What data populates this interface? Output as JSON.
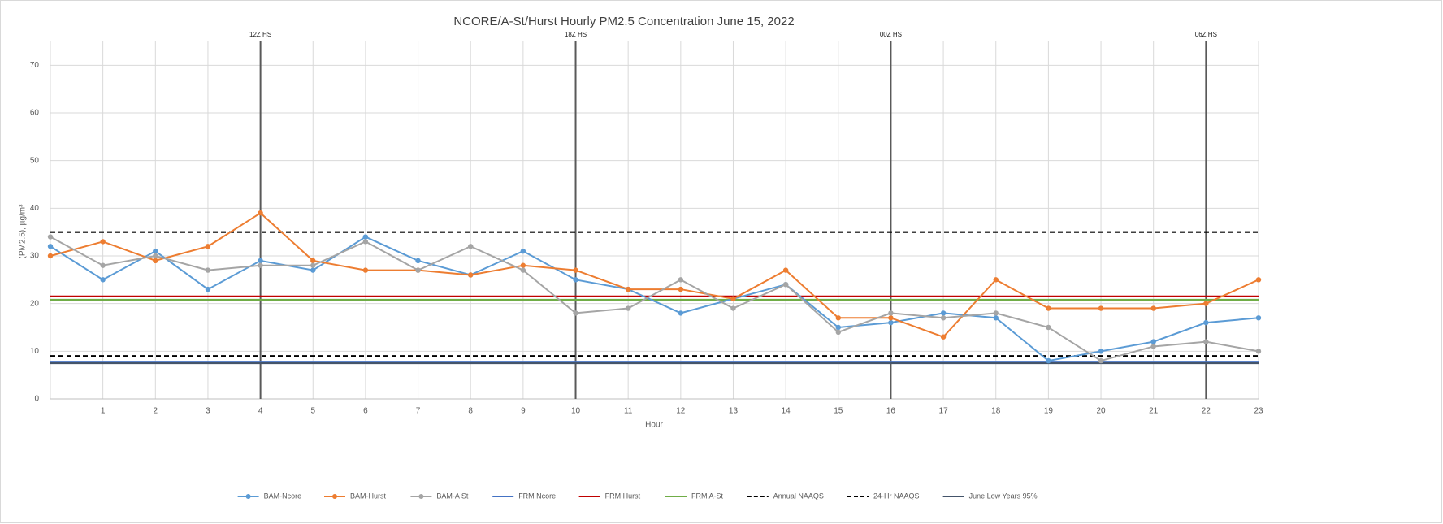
{
  "chart_data": {
    "type": "line",
    "title": "NCORE/A-St/Hurst Hourly PM2.5 Concentration June 15, 2022",
    "x_label": "Hour",
    "y_label": "(PM2.5), µg/m³",
    "x": [
      0,
      1,
      2,
      3,
      4,
      5,
      6,
      7,
      8,
      9,
      10,
      11,
      12,
      13,
      14,
      15,
      16,
      17,
      18,
      19,
      20,
      21,
      22,
      23
    ],
    "xlim": [
      0,
      23
    ],
    "xticks": [
      1,
      2,
      3,
      4,
      5,
      6,
      7,
      8,
      9,
      10,
      11,
      12,
      13,
      14,
      15,
      16,
      17,
      18,
      19,
      20,
      21,
      22,
      23
    ],
    "ylim": [
      0,
      75
    ],
    "yticks": [
      0,
      10,
      20,
      30,
      40,
      50,
      60,
      70
    ],
    "grid": true,
    "legend": "bottom",
    "series": [
      {
        "name": "BAM-Ncore",
        "color": "#5b9bd5",
        "values": [
          32,
          25,
          31,
          23,
          29,
          27,
          34,
          29,
          26,
          31,
          25,
          23,
          18,
          21,
          24,
          15,
          16,
          18,
          17,
          8,
          10,
          12,
          16,
          17
        ]
      },
      {
        "name": "BAM-Hurst",
        "color": "#ed7d31",
        "values": [
          30,
          33,
          29,
          32,
          39,
          29,
          27,
          27,
          26,
          28,
          27,
          23,
          23,
          21,
          27,
          17,
          17,
          13,
          25,
          19,
          19,
          19,
          20,
          25
        ]
      },
      {
        "name": "BAM-A St",
        "color": "#a5a5a5",
        "values": [
          34,
          28,
          30,
          27,
          28,
          28,
          33,
          27,
          32,
          27,
          18,
          19,
          25,
          19,
          24,
          14,
          18,
          17,
          18,
          15,
          8,
          11,
          12,
          10
        ]
      }
    ],
    "reference_lines": [
      {
        "name": "FRM Ncore",
        "color": "#4472c4",
        "value": 7.8,
        "dashed": false
      },
      {
        "name": "FRM Hurst",
        "color": "#c00000",
        "value": 21.5,
        "dashed": false
      },
      {
        "name": "FRM A-St",
        "color": "#70ad47",
        "value": 20.8,
        "dashed": false
      },
      {
        "name": "Annual NAAQS",
        "color": "#000000",
        "value": 9,
        "dashed": true
      },
      {
        "name": "24-Hr NAAQS",
        "color": "#000000",
        "value": 35,
        "dashed": true
      },
      {
        "name": "June Low Years 95%",
        "color": "#44546a",
        "value": 7.5,
        "dashed": false
      }
    ],
    "markers": [
      {
        "x": 4,
        "label": "12Z HS"
      },
      {
        "x": 10,
        "label": "18Z HS"
      },
      {
        "x": 16,
        "label": "00Z HS"
      },
      {
        "x": 22,
        "label": "06Z HS"
      }
    ]
  }
}
